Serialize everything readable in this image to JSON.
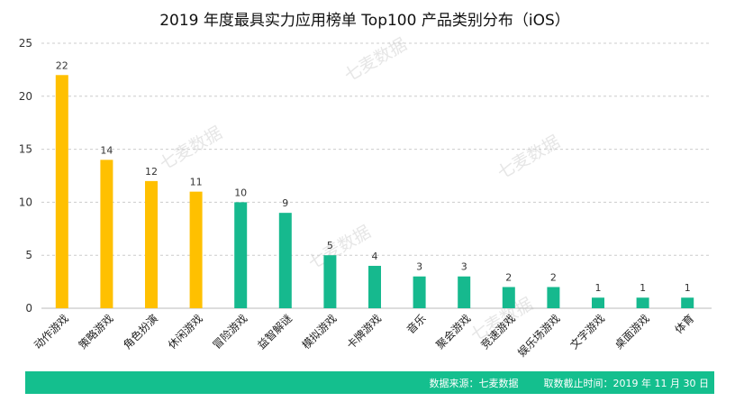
{
  "watermark": "七麦数据",
  "chart_data": {
    "type": "bar",
    "title": "2019 年度最具实力应用榜单 Top100 产品类别分布（iOS）",
    "categories": [
      "动作游戏",
      "策略游戏",
      "角色扮演",
      "休闲游戏",
      "冒险游戏",
      "益智解谜",
      "模拟游戏",
      "卡牌游戏",
      "音乐",
      "聚会游戏",
      "竞速游戏",
      "娱乐场游戏",
      "文字游戏",
      "桌面游戏",
      "体育"
    ],
    "values": [
      22,
      14,
      12,
      11,
      10,
      9,
      5,
      4,
      3,
      3,
      2,
      2,
      1,
      1,
      1
    ],
    "highlight_count": 4,
    "colors": {
      "highlight": "#ffc000",
      "normal": "#16b98e",
      "grid": "#cccccc"
    },
    "ylim": [
      0,
      25
    ],
    "yticks": [
      0,
      5,
      10,
      15,
      20,
      25
    ],
    "xlabel": "",
    "ylabel": "",
    "grid": true
  },
  "footer": {
    "source": "数据来源：七麦数据",
    "cutoff": "取数截止时间：2019 年 11 月 30 日"
  }
}
